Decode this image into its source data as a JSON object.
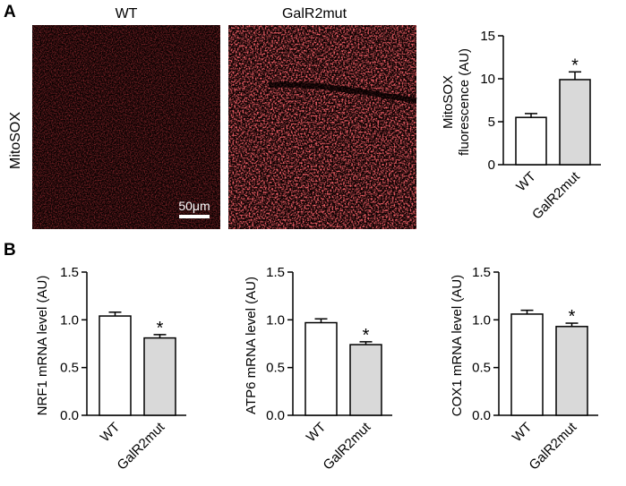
{
  "panels": {
    "a_label": "A",
    "b_label": "B"
  },
  "micrographs": {
    "wt_title": "WT",
    "mut_title": "GalR2mut",
    "row_label": "MitoSOX",
    "scale_bar_label": "50μm",
    "stain_color": "#e0262b"
  },
  "colors": {
    "wt_bar": "#ffffff",
    "mut_bar": "#d9d9d9",
    "stroke": "#000000"
  },
  "chart_data": [
    {
      "type": "bar",
      "panel": "A",
      "categories": [
        "WT",
        "GalR2mut"
      ],
      "values": [
        5.5,
        9.9
      ],
      "errors": [
        0.45,
        0.9
      ],
      "significance": [
        "",
        "*"
      ],
      "ylabel_lines": [
        "MitoSOX",
        "fluorescence (AU)"
      ],
      "ylim": [
        0,
        15
      ],
      "yticks": [
        0,
        5,
        10,
        15
      ],
      "tick_labels": [
        "0",
        "5",
        "10",
        "15"
      ]
    },
    {
      "type": "bar",
      "panel": "B",
      "categories": [
        "WT",
        "GalR2mut"
      ],
      "values": [
        1.04,
        0.81
      ],
      "errors": [
        0.04,
        0.035
      ],
      "significance": [
        "",
        "*"
      ],
      "ylabel_lines": [
        "NRF1 mRNA level (AU)"
      ],
      "ylim": [
        0,
        1.5
      ],
      "yticks": [
        0,
        0.5,
        1.0,
        1.5
      ],
      "tick_labels": [
        "0.0",
        "0.5",
        "1.0",
        "1.5"
      ]
    },
    {
      "type": "bar",
      "panel": "B",
      "categories": [
        "WT",
        "GalR2mut"
      ],
      "values": [
        0.97,
        0.74
      ],
      "errors": [
        0.04,
        0.03
      ],
      "significance": [
        "",
        "*"
      ],
      "ylabel_lines": [
        "ATP6 mRNA level (AU)"
      ],
      "ylim": [
        0,
        1.5
      ],
      "yticks": [
        0,
        0.5,
        1.0,
        1.5
      ],
      "tick_labels": [
        "0.0",
        "0.5",
        "1.0",
        "1.5"
      ]
    },
    {
      "type": "bar",
      "panel": "B",
      "categories": [
        "WT",
        "GalR2mut"
      ],
      "values": [
        1.06,
        0.93
      ],
      "errors": [
        0.04,
        0.035
      ],
      "significance": [
        "",
        "*"
      ],
      "ylabel_lines": [
        "COX1 mRNA level (AU)"
      ],
      "ylim": [
        0,
        1.5
      ],
      "yticks": [
        0,
        0.5,
        1.0,
        1.5
      ],
      "tick_labels": [
        "0.0",
        "0.5",
        "1.0",
        "1.5"
      ]
    }
  ]
}
